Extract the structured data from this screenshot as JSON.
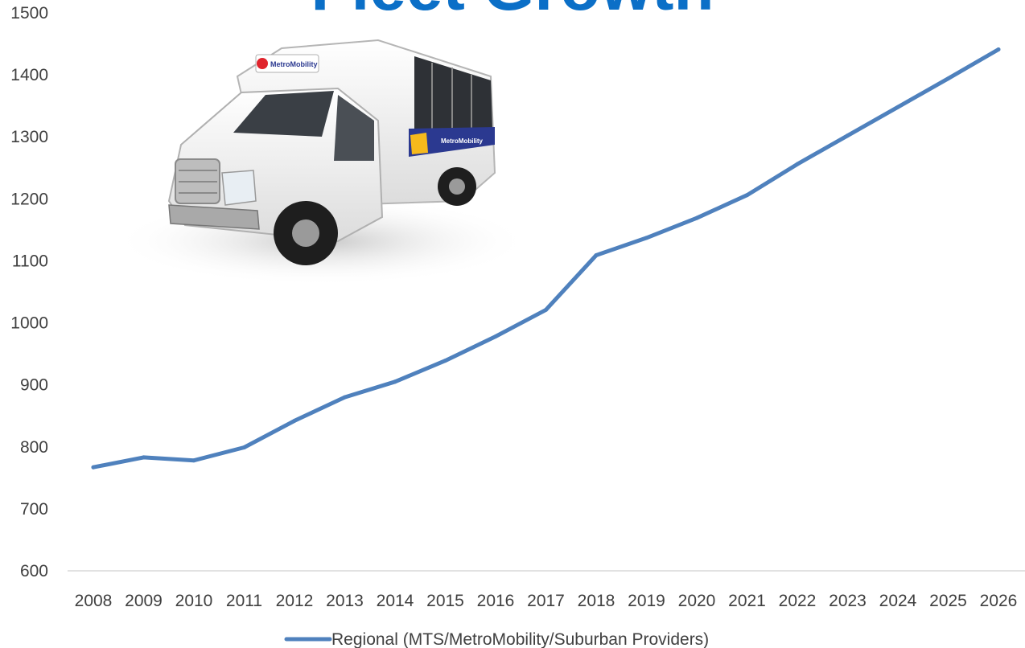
{
  "colors": {
    "series": "#4f81bd",
    "title": "#0b6fc7",
    "axis": "#d9d9d9",
    "text": "#404040"
  },
  "illustration": {
    "icon": "paratransit-bus-image",
    "wordmark": "MetroMobility",
    "side_text": "MetroMobility"
  },
  "chart_data": {
    "type": "line",
    "title": "Fleet Growth",
    "xlabel": "",
    "ylabel": "",
    "categories": [
      "2008",
      "2009",
      "2010",
      "2011",
      "2012",
      "2013",
      "2014",
      "2015",
      "2016",
      "2017",
      "2018",
      "2019",
      "2020",
      "2021",
      "2022",
      "2023",
      "2024",
      "2025",
      "2026"
    ],
    "series": [
      {
        "name": "Regional (MTS/MetroMobility/Suburban Providers)",
        "values": [
          767,
          783,
          778,
          799,
          842,
          880,
          905,
          939,
          978,
          1021,
          1109,
          1137,
          1169,
          1206,
          1256,
          1302,
          1348,
          1394,
          1441
        ]
      }
    ],
    "yticks": [
      600,
      700,
      800,
      900,
      1000,
      1100,
      1200,
      1300,
      1400,
      1500
    ],
    "ylim": [
      600,
      1500
    ],
    "grid": false,
    "legend_position": "bottom"
  }
}
